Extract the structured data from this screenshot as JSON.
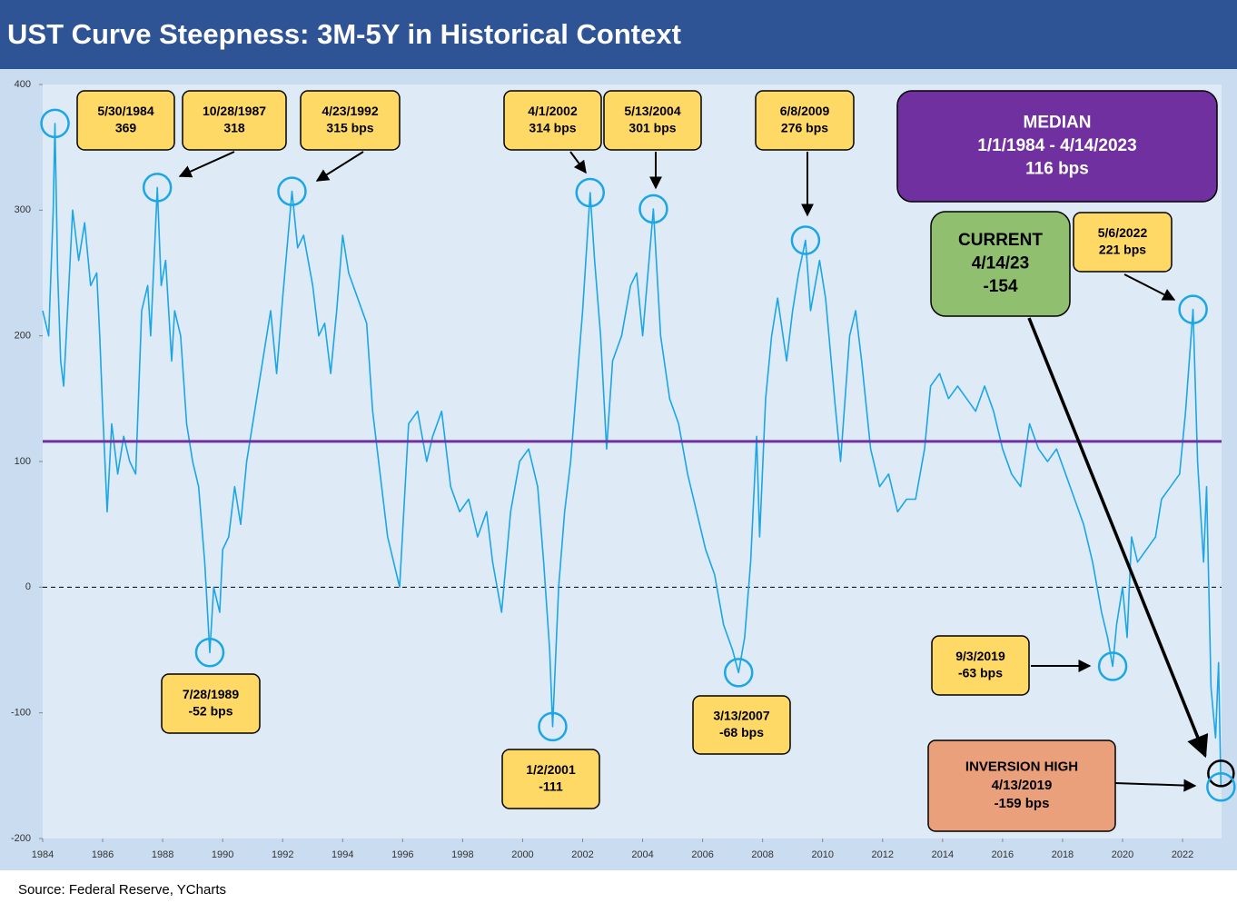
{
  "chart_data": {
    "type": "line",
    "title": "UST Curve Steepness: 3M-5Y in Historical Context",
    "source": "Source: Federal Reserve, YCharts",
    "xlim": [
      1984,
      2023.3
    ],
    "xticks": [
      1984,
      1986,
      1988,
      1990,
      1992,
      1994,
      1996,
      1998,
      2000,
      2002,
      2004,
      2006,
      2008,
      2010,
      2012,
      2014,
      2016,
      2018,
      2020,
      2022
    ],
    "ylim": [
      -200,
      400
    ],
    "yticks": [
      -200,
      -100,
      0,
      100,
      200,
      300,
      400
    ],
    "series": [
      {
        "color": "#1ba6e6",
        "x": [
          1984.0,
          1984.2,
          1984.35,
          1984.41,
          1984.5,
          1984.6,
          1984.7,
          1984.85,
          1985.0,
          1985.2,
          1985.4,
          1985.6,
          1985.8,
          1985.9,
          1986.0,
          1986.15,
          1986.3,
          1986.5,
          1986.7,
          1986.9,
          1987.1,
          1987.3,
          1987.5,
          1987.6,
          1987.82,
          1987.95,
          1988.1,
          1988.3,
          1988.4,
          1988.6,
          1988.8,
          1989.0,
          1989.2,
          1989.4,
          1989.57,
          1989.7,
          1989.9,
          1990.0,
          1990.2,
          1990.4,
          1990.6,
          1990.8,
          1991.0,
          1991.2,
          1991.4,
          1991.6,
          1991.8,
          1992.0,
          1992.31,
          1992.5,
          1992.7,
          1993.0,
          1993.2,
          1993.4,
          1993.6,
          1993.8,
          1994.0,
          1994.2,
          1994.5,
          1994.8,
          1995.0,
          1995.2,
          1995.5,
          1995.9,
          1996.2,
          1996.5,
          1996.8,
          1997.0,
          1997.3,
          1997.6,
          1997.9,
          1998.2,
          1998.5,
          1998.8,
          1999.0,
          1999.3,
          1999.6,
          1999.9,
          2000.2,
          2000.5,
          2000.7,
          2000.9,
          2001.0,
          2001.2,
          2001.4,
          2001.6,
          2001.8,
          2002.0,
          2002.25,
          2002.4,
          2002.6,
          2002.8,
          2003.0,
          2003.3,
          2003.6,
          2003.8,
          2004.0,
          2004.36,
          2004.6,
          2004.9,
          2005.2,
          2005.5,
          2005.8,
          2006.1,
          2006.4,
          2006.7,
          2007.0,
          2007.2,
          2007.4,
          2007.6,
          2007.8,
          2007.9,
          2008.1,
          2008.3,
          2008.5,
          2008.8,
          2009.0,
          2009.2,
          2009.43,
          2009.6,
          2009.9,
          2010.1,
          2010.4,
          2010.6,
          2010.9,
          2011.1,
          2011.3,
          2011.6,
          2011.9,
          2012.2,
          2012.5,
          2012.8,
          2013.1,
          2013.4,
          2013.6,
          2013.9,
          2014.2,
          2014.5,
          2014.8,
          2015.1,
          2015.4,
          2015.7,
          2016.0,
          2016.3,
          2016.6,
          2016.9,
          2017.2,
          2017.5,
          2017.8,
          2018.1,
          2018.4,
          2018.7,
          2019.0,
          2019.3,
          2019.5,
          2019.67,
          2019.8,
          2020.0,
          2020.15,
          2020.3,
          2020.5,
          2020.8,
          2021.1,
          2021.3,
          2021.6,
          2021.9,
          2022.1,
          2022.35,
          2022.5,
          2022.7,
          2022.8,
          2022.95,
          2023.1,
          2023.2,
          2023.28
        ],
        "values": [
          220,
          200,
          300,
          369,
          250,
          180,
          160,
          230,
          300,
          260,
          290,
          240,
          250,
          200,
          140,
          60,
          130,
          90,
          120,
          100,
          90,
          220,
          240,
          200,
          318,
          240,
          260,
          180,
          220,
          200,
          130,
          100,
          80,
          20,
          -52,
          0,
          -20,
          30,
          40,
          80,
          50,
          100,
          130,
          160,
          190,
          220,
          170,
          230,
          315,
          270,
          280,
          240,
          200,
          210,
          170,
          220,
          280,
          250,
          230,
          210,
          140,
          100,
          40,
          0,
          130,
          140,
          100,
          120,
          140,
          80,
          60,
          70,
          40,
          60,
          20,
          -20,
          60,
          100,
          110,
          80,
          20,
          -50,
          -111,
          0,
          60,
          100,
          160,
          220,
          314,
          260,
          200,
          110,
          180,
          200,
          240,
          250,
          200,
          301,
          200,
          150,
          130,
          90,
          60,
          30,
          10,
          -30,
          -50,
          -68,
          -40,
          20,
          120,
          40,
          150,
          200,
          230,
          180,
          220,
          250,
          276,
          220,
          260,
          230,
          150,
          100,
          200,
          220,
          180,
          110,
          80,
          90,
          60,
          70,
          70,
          110,
          160,
          170,
          150,
          160,
          150,
          140,
          160,
          140,
          110,
          90,
          80,
          130,
          110,
          100,
          110,
          90,
          70,
          50,
          20,
          -20,
          -40,
          -63,
          -30,
          0,
          -40,
          40,
          20,
          30,
          40,
          70,
          80,
          90,
          140,
          221,
          100,
          20,
          80,
          -80,
          -120,
          -60,
          -159
        ]
      }
    ],
    "median_color": "#7030a0",
    "annotations": [
      {
        "lines": [
          "5/30/1984",
          "369"
        ],
        "x": 1984.41,
        "y": 369
      },
      {
        "lines": [
          "10/28/1987",
          "318"
        ],
        "x": 1987.82,
        "y": 318
      },
      {
        "lines": [
          "4/23/1992",
          "315 bps"
        ],
        "x": 1992.31,
        "y": 315
      },
      {
        "lines": [
          "4/1/2002",
          "314 bps"
        ],
        "x": 2002.25,
        "y": 314
      },
      {
        "lines": [
          "5/13/2004",
          "301 bps"
        ],
        "x": 2004.36,
        "y": 301
      },
      {
        "lines": [
          "6/8/2009",
          "276 bps"
        ],
        "x": 2009.43,
        "y": 276
      },
      {
        "lines": [
          "7/28/1989",
          "-52 bps"
        ],
        "x": 1989.57,
        "y": -52
      },
      {
        "lines": [
          "1/2/2001",
          "-111"
        ],
        "x": 2001.0,
        "y": -111
      },
      {
        "lines": [
          "3/13/2007",
          "-68 bps"
        ],
        "x": 2007.2,
        "y": -68
      },
      {
        "lines": [
          "9/3/2019",
          "-63 bps"
        ],
        "x": 2019.67,
        "y": -63
      },
      {
        "lines": [
          "5/6/2022",
          "221 bps"
        ],
        "x": 2022.35,
        "y": 221
      },
      {
        "lines": [
          "MEDIAN",
          "1/1/1984 - 4/14/2023",
          "116 bps"
        ],
        "y": 116
      },
      {
        "lines": [
          "CURRENT",
          "4/14/23",
          "-154"
        ],
        "x": 2023.28,
        "y": -154
      },
      {
        "lines": [
          "INVERSION HIGH",
          "4/13/2019",
          "-159 bps"
        ],
        "x": 2023.28,
        "y": -159
      }
    ]
  }
}
